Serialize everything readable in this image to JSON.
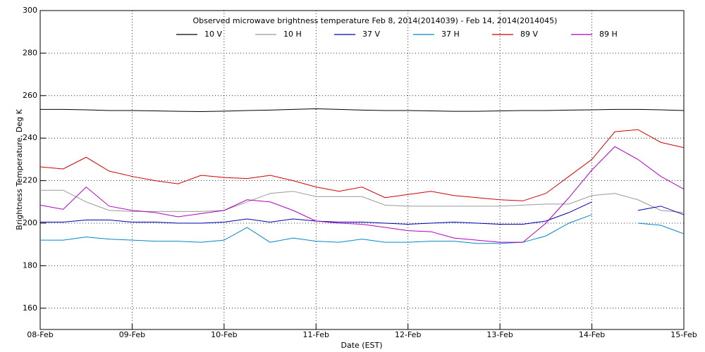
{
  "chart_data": {
    "type": "line",
    "title": "Observed microwave brightness temperature Feb  8, 2014(2014039) - Feb 14, 2014(2014045)",
    "xlabel": "Date (EST)",
    "ylabel": "Brightness Temperature, Deg K",
    "x": [
      0,
      0.25,
      0.5,
      0.75,
      1,
      1.25,
      1.5,
      1.75,
      2,
      2.25,
      2.5,
      2.75,
      3,
      3.25,
      3.5,
      3.75,
      4,
      4.25,
      4.5,
      4.75,
      5,
      5.25,
      5.5,
      5.75,
      6,
      6.25,
      6.5,
      6.75,
      7
    ],
    "xlim": [
      0,
      7
    ],
    "xticks": [
      {
        "value": 0,
        "label": "08-Feb"
      },
      {
        "value": 1,
        "label": "09-Feb"
      },
      {
        "value": 2,
        "label": "10-Feb"
      },
      {
        "value": 3,
        "label": "11-Feb"
      },
      {
        "value": 4,
        "label": "12-Feb"
      },
      {
        "value": 5,
        "label": "13-Feb"
      },
      {
        "value": 6,
        "label": "14-Feb"
      },
      {
        "value": 7,
        "label": "15-Feb"
      }
    ],
    "ylim": [
      150,
      300
    ],
    "yticks": [
      160,
      180,
      200,
      220,
      240,
      260,
      280,
      300
    ],
    "grid": true,
    "series": [
      {
        "name": "10 V",
        "color": "#000000",
        "values": [
          253.5,
          253.5,
          253.3,
          253,
          253,
          252.8,
          252.6,
          252.5,
          252.7,
          253,
          253.2,
          253.5,
          253.8,
          253.5,
          253.2,
          253,
          253,
          252.8,
          252.6,
          252.6,
          252.8,
          253,
          253,
          253.2,
          253.3,
          253.5,
          253.5,
          253.3,
          253
        ]
      },
      {
        "name": "10 H",
        "color": "#999999",
        "values": [
          215.5,
          215.5,
          210,
          206,
          205.5,
          205.5,
          205.5,
          205.5,
          206,
          210,
          214,
          215,
          212.5,
          212.5,
          212.5,
          208.5,
          208,
          208,
          208,
          208,
          208,
          208.5,
          209,
          209,
          213,
          214,
          211,
          206,
          205
        ]
      },
      {
        "name": "37 V",
        "color": "#0000b0",
        "values": [
          200.5,
          200.5,
          201.5,
          201.5,
          200.5,
          200.5,
          200,
          200,
          200.5,
          202,
          200.5,
          202,
          201,
          200.5,
          200.5,
          200,
          199.5,
          200,
          200.5,
          200,
          199.5,
          199.5,
          201,
          205,
          210,
          null,
          206,
          208,
          204
        ]
      },
      {
        "name": "37 H",
        "color": "#0088cc",
        "values": [
          192,
          192,
          193.5,
          192.5,
          192,
          191.5,
          191.5,
          191,
          192,
          198,
          191,
          193,
          191.5,
          191,
          192.5,
          191,
          191,
          191.5,
          191.5,
          190.5,
          190.5,
          191,
          194,
          200,
          204,
          null,
          200,
          199,
          195
        ]
      },
      {
        "name": "89 V",
        "color": "#d00000",
        "values": [
          226.5,
          225.5,
          231,
          224.5,
          222,
          220,
          218.5,
          222.5,
          221.5,
          221,
          222.5,
          220,
          217,
          215,
          217,
          212,
          213.5,
          215,
          213,
          212,
          211,
          210.5,
          214,
          222,
          230,
          243,
          244,
          238,
          235.5
        ]
      },
      {
        "name": "89 H",
        "color": "#b000c0",
        "values": [
          208.5,
          206.5,
          217,
          208,
          206,
          205,
          203,
          204.5,
          206,
          211,
          210,
          206,
          201,
          200,
          199.5,
          198,
          196.5,
          196,
          193,
          192,
          191,
          191,
          200,
          212,
          225,
          236,
          230,
          222,
          216
        ]
      }
    ]
  }
}
